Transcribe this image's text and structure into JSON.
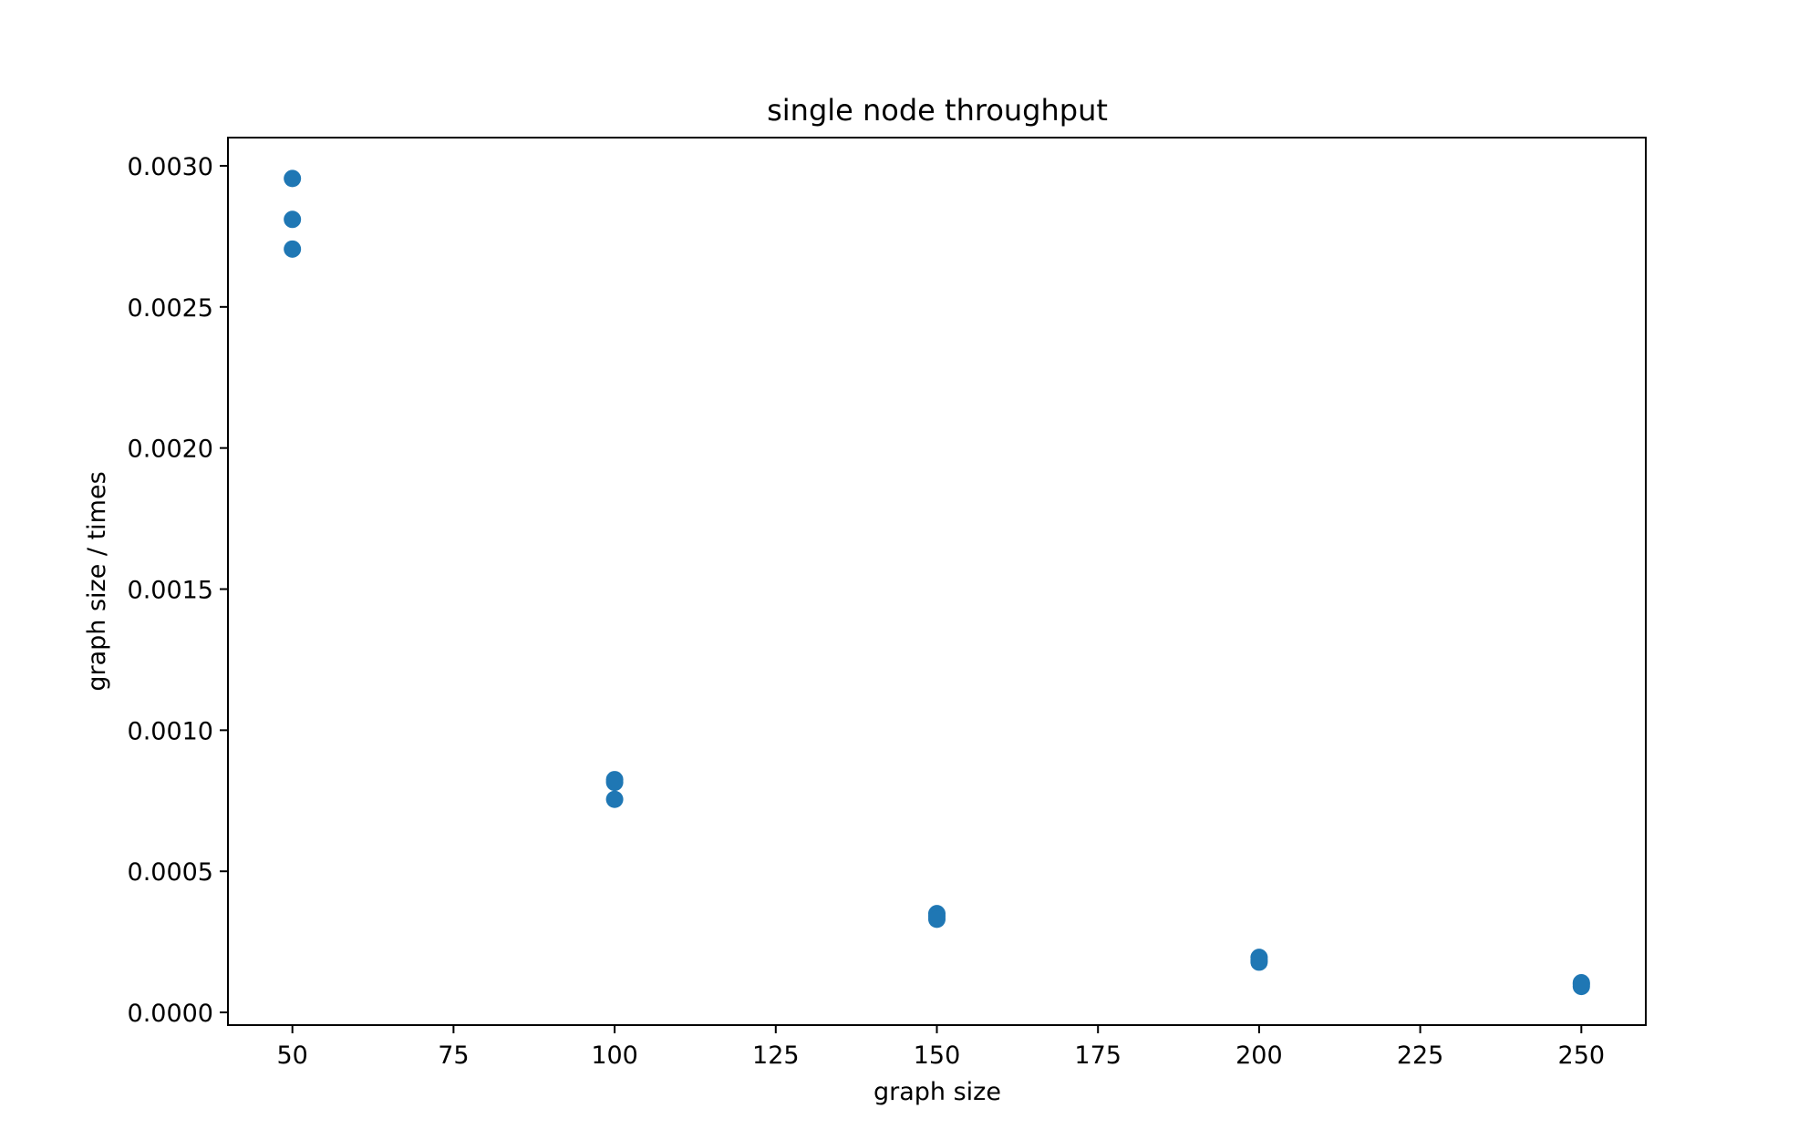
{
  "chart_data": {
    "type": "scatter",
    "title": "single node throughput",
    "xlabel": "graph size",
    "ylabel": "graph size / times",
    "xlim": [
      40,
      260
    ],
    "ylim": [
      -4.5e-05,
      0.0031
    ],
    "x_ticks": [
      50,
      75,
      100,
      125,
      150,
      175,
      200,
      225,
      250
    ],
    "x_tick_labels": [
      "50",
      "75",
      "100",
      "125",
      "150",
      "175",
      "200",
      "225",
      "250"
    ],
    "y_ticks": [
      0.0,
      0.0005,
      0.001,
      0.0015,
      0.002,
      0.0025,
      0.003
    ],
    "y_tick_labels": [
      "0.0000",
      "0.0005",
      "0.0010",
      "0.0015",
      "0.0020",
      "0.0025",
      "0.0030"
    ],
    "grid": false,
    "legend": "none",
    "marker_color": "#1f77b4",
    "points": [
      {
        "x": 50,
        "y": 0.002955
      },
      {
        "x": 50,
        "y": 0.00281
      },
      {
        "x": 50,
        "y": 0.002705
      },
      {
        "x": 100,
        "y": 0.000825
      },
      {
        "x": 100,
        "y": 0.000815
      },
      {
        "x": 100,
        "y": 0.000755
      },
      {
        "x": 150,
        "y": 0.00035
      },
      {
        "x": 150,
        "y": 0.00034
      },
      {
        "x": 150,
        "y": 0.00033
      },
      {
        "x": 200,
        "y": 0.000195
      },
      {
        "x": 200,
        "y": 0.000185
      },
      {
        "x": 200,
        "y": 0.000178
      },
      {
        "x": 250,
        "y": 0.000105
      },
      {
        "x": 250,
        "y": 0.0001
      },
      {
        "x": 250,
        "y": 9.2e-05
      }
    ]
  }
}
